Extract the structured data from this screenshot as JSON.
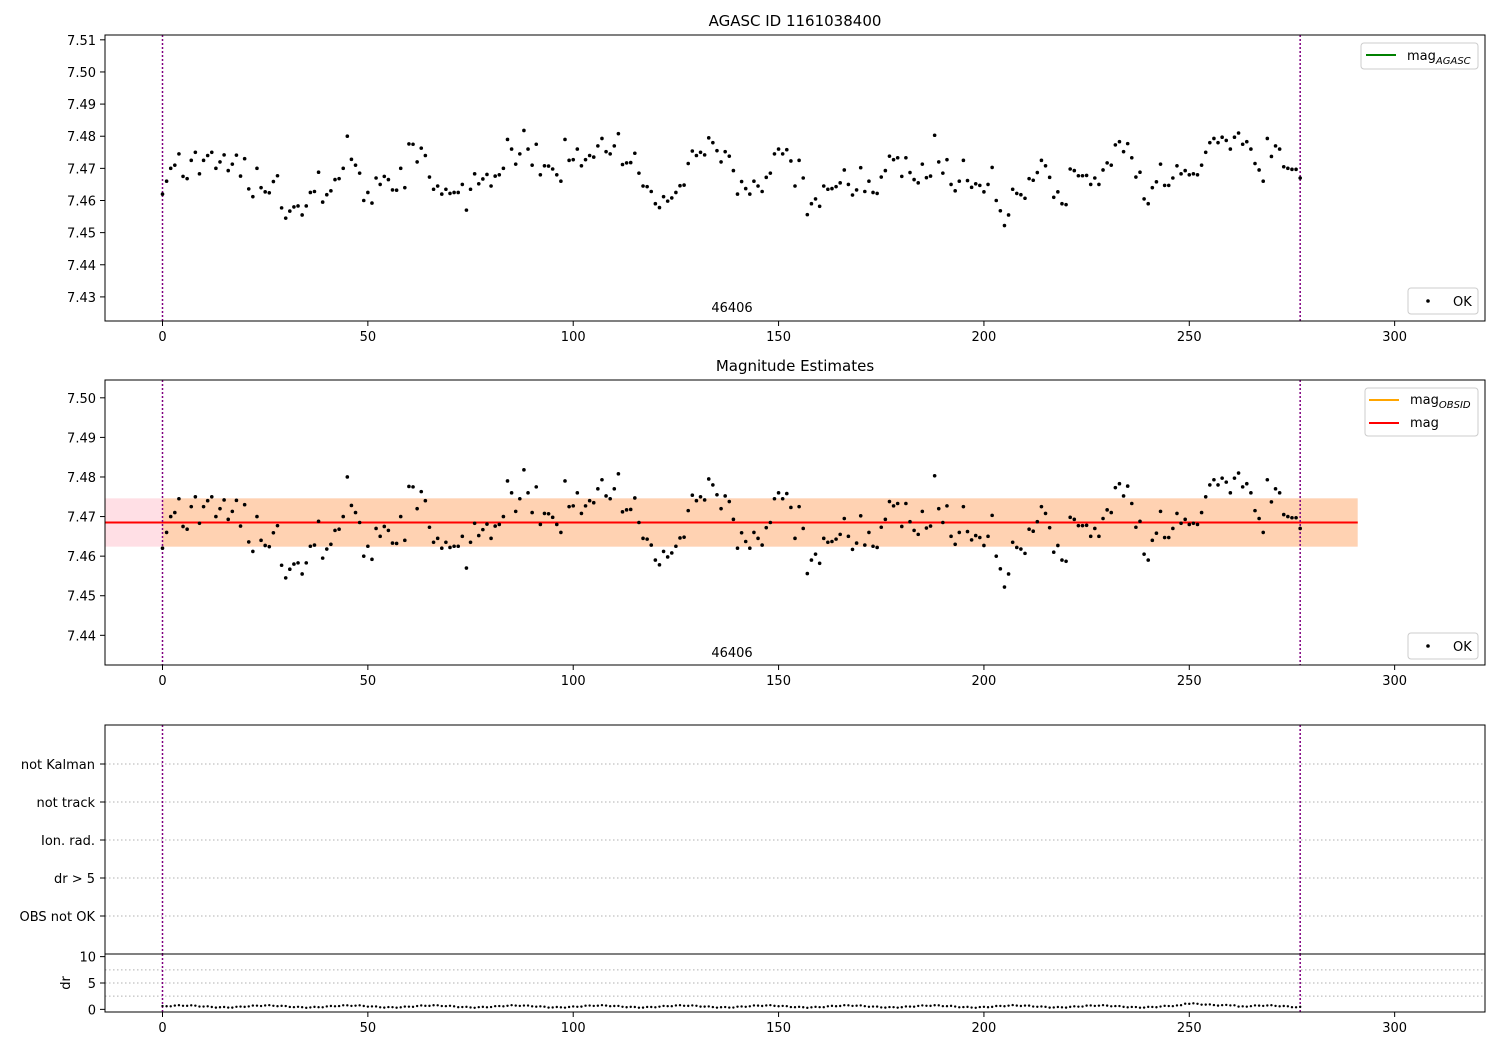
{
  "chart_data": [
    {
      "type": "scatter",
      "title": "AGASC ID 1161038400",
      "xlabel": "",
      "ylabel": "",
      "xlim": [
        -14,
        322
      ],
      "ylim": [
        7.4225,
        7.5115
      ],
      "xticks": [
        0,
        50,
        100,
        150,
        200,
        250,
        300
      ],
      "yticks": [
        7.43,
        7.44,
        7.45,
        7.46,
        7.47,
        7.48,
        7.49,
        7.5,
        7.51
      ],
      "ytick_labels": [
        "7.43",
        "7.44",
        "7.45",
        "7.46",
        "7.47",
        "7.48",
        "7.49",
        "7.50",
        "7.51"
      ],
      "obsid_label": {
        "text": "46406",
        "x": 138.5
      },
      "vlines": [
        0,
        277
      ],
      "legends": {
        "upper_right": [
          {
            "name": "mag",
            "subscript": "AGASC",
            "color": "#008000",
            "marker": "line"
          }
        ],
        "lower_right": [
          {
            "name": "OK",
            "color": "#000000",
            "marker": "dot"
          }
        ]
      },
      "series": [
        {
          "name": "OK",
          "color": "#000000",
          "values": []
        }
      ]
    },
    {
      "type": "scatter",
      "title": "Magnitude Estimates",
      "xlabel": "",
      "ylabel": "",
      "xlim": [
        -14,
        322
      ],
      "ylim": [
        7.4325,
        7.5045
      ],
      "xticks": [
        0,
        50,
        100,
        150,
        200,
        250,
        300
      ],
      "yticks": [
        7.44,
        7.45,
        7.46,
        7.47,
        7.48,
        7.49,
        7.5
      ],
      "ytick_labels": [
        "7.44",
        "7.45",
        "7.46",
        "7.47",
        "7.48",
        "7.49",
        "7.50"
      ],
      "obsid_label": {
        "text": "46406",
        "x": 138.5
      },
      "vlines": [
        0,
        277
      ],
      "mag": {
        "value": 7.4685,
        "x_range": [
          -14,
          291
        ],
        "band": [
          7.4624,
          7.4746
        ],
        "color": "#ff0000",
        "band_color": "#ffc0cb"
      },
      "mag_obsid": {
        "value": 7.4685,
        "x_range": [
          0,
          291
        ],
        "band": [
          7.4624,
          7.4746
        ],
        "color": "#ffa500"
      },
      "legends": {
        "upper_right": [
          {
            "name": "mag",
            "subscript": "OBSID",
            "color": "#ffa500",
            "marker": "line"
          },
          {
            "name": "mag",
            "subscript": "",
            "color": "#ff0000",
            "marker": "line"
          }
        ],
        "lower_right": [
          {
            "name": "OK",
            "color": "#000000",
            "marker": "dot"
          }
        ]
      },
      "series": [
        {
          "name": "OK",
          "color": "#000000",
          "values": []
        }
      ]
    },
    {
      "type": "scatter",
      "title": "",
      "xlabel": "",
      "ylabel": "",
      "xlim": [
        -14,
        322
      ],
      "flag_categories": [
        "OBS not OK",
        "dr > 5",
        "Ion. rad.",
        "not track",
        "not Kalman"
      ],
      "flagged_points": [],
      "vlines": [
        0,
        277
      ]
    },
    {
      "type": "scatter",
      "title": "",
      "xlabel": "",
      "ylabel": "dr",
      "xlim": [
        -14,
        322
      ],
      "ylim": [
        -0.5,
        10.5
      ],
      "xticks": [
        0,
        50,
        100,
        150,
        200,
        250,
        300
      ],
      "xtick_labels": [
        "0",
        "50",
        "100",
        "150",
        "200",
        "250",
        "300"
      ],
      "yticks": [
        0,
        5,
        10
      ],
      "ytick_labels": [
        "0",
        "5",
        "10"
      ],
      "hlines": [
        2.5,
        5,
        7.5
      ],
      "vlines": [
        0,
        277
      ],
      "series": [
        {
          "name": "dr",
          "color": "#000000",
          "values": []
        }
      ]
    }
  ],
  "mag_values": [
    7.462,
    7.466,
    7.47,
    7.471,
    7.4745,
    7.4675,
    7.4668,
    7.4725,
    7.475,
    7.4683,
    7.4725,
    7.474,
    7.475,
    7.47,
    7.472,
    7.4742,
    7.4693,
    7.4713,
    7.4741,
    7.4676,
    7.473,
    7.4636,
    7.4612,
    7.47,
    7.464,
    7.4627,
    7.4624,
    7.4659,
    7.4677,
    7.4577,
    7.4545,
    7.4567,
    7.458,
    7.4583,
    7.4555,
    7.4583,
    7.4625,
    7.4628,
    7.4688,
    7.4595,
    7.4618,
    7.463,
    7.4665,
    7.4668,
    7.47,
    7.48,
    7.4728,
    7.471,
    7.4685,
    7.46,
    7.4625,
    7.4592,
    7.467,
    7.465,
    7.4675,
    7.4665,
    7.4633,
    7.4632,
    7.47,
    7.464,
    7.4776,
    7.4775,
    7.472,
    7.4763,
    7.474,
    7.4673,
    7.4635,
    7.4645,
    7.462,
    7.4635,
    7.4622,
    7.4625,
    7.4625,
    7.465,
    7.457,
    7.4635,
    7.4683,
    7.4652,
    7.4667,
    7.4681,
    7.4645,
    7.4676,
    7.468,
    7.47,
    7.479,
    7.476,
    7.4713,
    7.4745,
    7.4818,
    7.476,
    7.471,
    7.4775,
    7.468,
    7.4708,
    7.4707,
    7.4698,
    7.468,
    7.466,
    7.479,
    7.4725,
    7.4727,
    7.476,
    7.4708,
    7.4727,
    7.474,
    7.4735,
    7.477,
    7.4793,
    7.4752,
    7.4745,
    7.477,
    7.4808,
    7.4712,
    7.4717,
    7.4718,
    7.4747,
    7.4685,
    7.4645,
    7.4643,
    7.4628,
    7.459,
    7.4578,
    7.4612,
    7.4598,
    7.4608,
    7.4625,
    7.4646,
    7.4648,
    7.4715,
    7.4754,
    7.474,
    7.475,
    7.4742,
    7.4795,
    7.478,
    7.4755,
    7.472,
    7.4752,
    7.4738,
    7.4693,
    7.462,
    7.4659,
    7.4637,
    7.462,
    7.466,
    7.4645,
    7.4628,
    7.4672,
    7.4685,
    7.4745,
    7.476,
    7.4745,
    7.4758,
    7.4723,
    7.4645,
    7.4725,
    7.467,
    7.4556,
    7.459,
    7.4605,
    7.4582,
    7.4645,
    7.4635,
    7.4637,
    7.4643,
    7.4655,
    7.4695,
    7.465,
    7.4617,
    7.4633,
    7.4702,
    7.4628,
    7.466,
    7.4625,
    7.4622,
    7.4673,
    7.4693,
    7.4738,
    7.4727,
    7.4733,
    7.4675,
    7.4733,
    7.4687,
    7.4665,
    7.4655,
    7.4713,
    7.4671,
    7.4676,
    7.4803,
    7.472,
    7.4685,
    7.4727,
    7.465,
    7.463,
    7.466,
    7.4725,
    7.4662,
    7.4641,
    7.4652,
    7.4647,
    7.4627,
    7.465,
    7.4703,
    7.46,
    7.4568,
    7.4522,
    7.4555,
    7.4635,
    7.4622,
    7.4618,
    7.4607,
    7.4668,
    7.4663,
    7.4687,
    7.4725,
    7.4708,
    7.4672,
    7.461,
    7.4627,
    7.459,
    7.4587,
    7.4698,
    7.4693,
    7.4677,
    7.4677,
    7.4678,
    7.465,
    7.467,
    7.465,
    7.4695,
    7.4717,
    7.471,
    7.4773,
    7.4783,
    7.4752,
    7.4777,
    7.4733,
    7.4673,
    7.4688,
    7.4605,
    7.459,
    7.464,
    7.4658,
    7.4713,
    7.4647,
    7.4647,
    7.467,
    7.4708,
    7.4683,
    7.4693,
    7.468,
    7.4683,
    7.468,
    7.471,
    7.475,
    7.478,
    7.4793,
    7.478,
    7.4797,
    7.4787,
    7.476,
    7.4797,
    7.481,
    7.4775,
    7.4783,
    7.476,
    7.4715,
    7.4695,
    7.466,
    7.4793,
    7.4737,
    7.477,
    7.476,
    7.4705,
    7.47,
    7.4697,
    7.4697,
    7.467
  ],
  "dr_values_rule": "dr small ~0.3-0.9 arcsec"
}
